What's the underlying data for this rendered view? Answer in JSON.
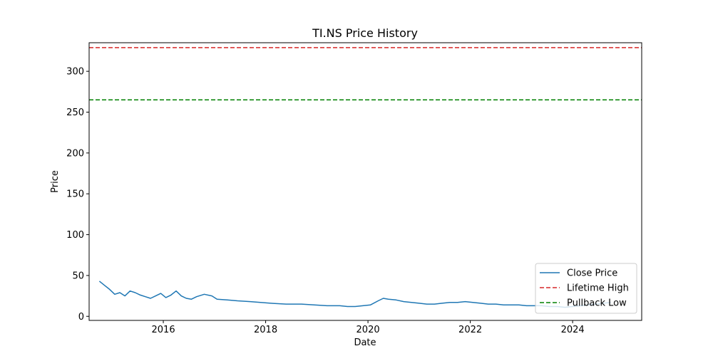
{
  "chart_data": {
    "type": "line",
    "title": "TI.NS Price History",
    "xlabel": "Date",
    "ylabel": "Price",
    "xlim": [
      2014.55,
      2025.35
    ],
    "ylim": [
      -5,
      335
    ],
    "x_ticks": [
      2016,
      2018,
      2020,
      2022,
      2024
    ],
    "x_tick_labels": [
      "2016",
      "2018",
      "2020",
      "2022",
      "2024"
    ],
    "y_ticks": [
      0,
      50,
      100,
      150,
      200,
      250,
      300
    ],
    "y_tick_labels": [
      "0",
      "50",
      "100",
      "150",
      "200",
      "250",
      "300"
    ],
    "grid": false,
    "legend_position": "lower-right",
    "series": [
      {
        "name": "Close Price",
        "color": "#1f77b4",
        "style": "solid",
        "points": [
          [
            2014.75,
            43
          ],
          [
            2014.85,
            38
          ],
          [
            2014.95,
            33
          ],
          [
            2015.05,
            27
          ],
          [
            2015.15,
            29
          ],
          [
            2015.25,
            25
          ],
          [
            2015.35,
            31
          ],
          [
            2015.45,
            29
          ],
          [
            2015.55,
            26
          ],
          [
            2015.65,
            24
          ],
          [
            2015.75,
            22
          ],
          [
            2015.85,
            25
          ],
          [
            2015.95,
            28
          ],
          [
            2016.05,
            23
          ],
          [
            2016.15,
            26
          ],
          [
            2016.25,
            31
          ],
          [
            2016.3,
            28
          ],
          [
            2016.35,
            25
          ],
          [
            2016.45,
            22
          ],
          [
            2016.55,
            21
          ],
          [
            2016.65,
            24
          ],
          [
            2016.8,
            27
          ],
          [
            2016.95,
            25
          ],
          [
            2017.05,
            21
          ],
          [
            2017.25,
            20
          ],
          [
            2017.45,
            19
          ],
          [
            2017.7,
            18
          ],
          [
            2017.9,
            17
          ],
          [
            2018.1,
            16
          ],
          [
            2018.4,
            15
          ],
          [
            2018.7,
            15
          ],
          [
            2018.95,
            14
          ],
          [
            2019.2,
            13
          ],
          [
            2019.45,
            13
          ],
          [
            2019.6,
            12
          ],
          [
            2019.75,
            12
          ],
          [
            2019.9,
            13
          ],
          [
            2020.05,
            14
          ],
          [
            2020.2,
            19
          ],
          [
            2020.3,
            22
          ],
          [
            2020.4,
            21
          ],
          [
            2020.55,
            20
          ],
          [
            2020.7,
            18
          ],
          [
            2020.85,
            17
          ],
          [
            2021.0,
            16
          ],
          [
            2021.15,
            15
          ],
          [
            2021.3,
            15
          ],
          [
            2021.45,
            16
          ],
          [
            2021.6,
            17
          ],
          [
            2021.75,
            17
          ],
          [
            2021.9,
            18
          ],
          [
            2022.05,
            17
          ],
          [
            2022.2,
            16
          ],
          [
            2022.35,
            15
          ],
          [
            2022.5,
            15
          ],
          [
            2022.65,
            14
          ],
          [
            2022.8,
            14
          ],
          [
            2022.95,
            14
          ],
          [
            2023.1,
            13
          ],
          [
            2023.25,
            13
          ],
          [
            2023.4,
            13
          ],
          [
            2023.55,
            12
          ],
          [
            2023.7,
            12
          ],
          [
            2023.85,
            11
          ],
          [
            2024.0,
            12
          ],
          [
            2024.15,
            13
          ],
          [
            2024.3,
            14
          ],
          [
            2024.45,
            15
          ],
          [
            2024.6,
            16
          ],
          [
            2024.75,
            17
          ]
        ]
      },
      {
        "name": "Lifetime High",
        "color": "#d62728",
        "style": "dashed",
        "y": 329
      },
      {
        "name": "Pullback Low",
        "color": "#008000",
        "style": "dashed",
        "y": 265
      }
    ]
  }
}
